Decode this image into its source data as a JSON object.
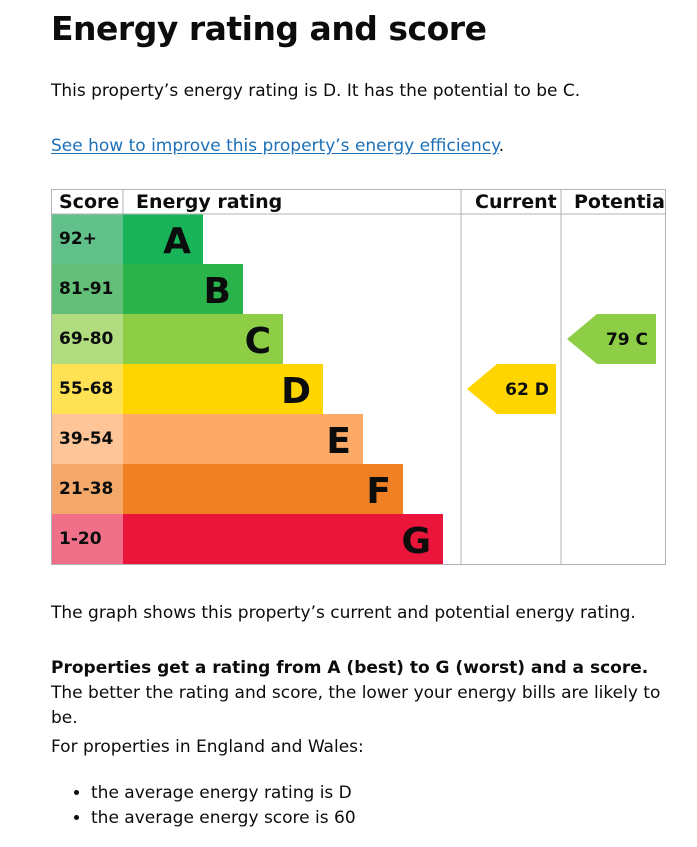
{
  "title": "Energy rating and score",
  "intro": "This property’s energy rating is D. It has the potential to be C.",
  "improve_link": "See how to improve this property’s energy efficiency",
  "improve_link_suffix": ".",
  "chart_data": {
    "type": "table",
    "columns": [
      "Score",
      "Energy rating",
      "Current",
      "Potential"
    ],
    "bands": [
      {
        "score_range": "92+",
        "letter": "A",
        "color": "#19b459",
        "score_bg": "#62c18b",
        "length_rank": 1
      },
      {
        "score_range": "81-91",
        "letter": "B",
        "color": "#2bb34b",
        "score_bg": "#64bf78",
        "length_rank": 2
      },
      {
        "score_range": "69-80",
        "letter": "C",
        "color": "#8dce46",
        "score_bg": "#b1dc80",
        "length_rank": 3
      },
      {
        "score_range": "55-68",
        "letter": "D",
        "color": "#ffd500",
        "score_bg": "#ffe154",
        "length_rank": 4
      },
      {
        "score_range": "39-54",
        "letter": "E",
        "color": "#fcaa65",
        "score_bg": "#fdc598",
        "length_rank": 5
      },
      {
        "score_range": "21-38",
        "letter": "F",
        "color": "#ef8023",
        "score_bg": "#f4a96b",
        "length_rank": 6
      },
      {
        "score_range": "1-20",
        "letter": "G",
        "color": "#e9153b",
        "score_bg": "#f0708a",
        "length_rank": 7
      }
    ],
    "current": {
      "score": 62,
      "letter": "D",
      "label": "62  D",
      "color": "#ffd500"
    },
    "potential": {
      "score": 79,
      "letter": "C",
      "label": "79  C",
      "color": "#8dce46"
    }
  },
  "caption": "The graph shows this property’s current and potential energy rating.",
  "info_bold": "Properties get a rating from A (best) to G (worst) and a score.",
  "info_rest": " The better the rating and score, the lower your energy bills are likely to be.",
  "avg_intro": "For properties in England and Wales:",
  "averages": [
    "the average energy rating is D",
    "the average energy score is 60"
  ]
}
